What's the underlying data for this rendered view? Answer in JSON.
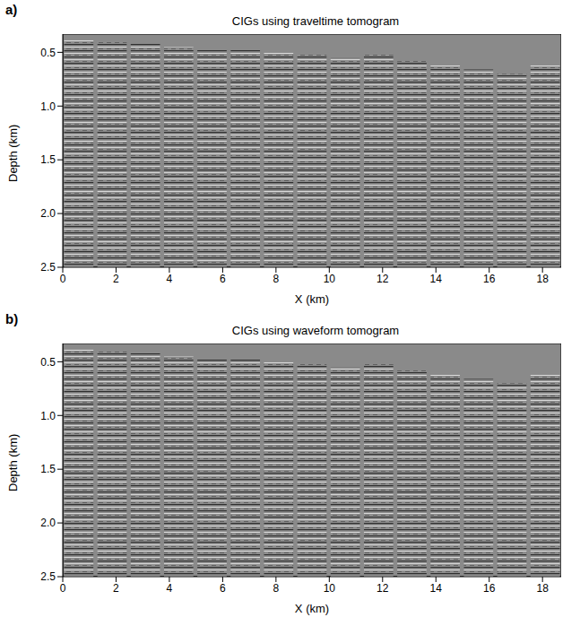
{
  "chart_data": [
    {
      "type": "image",
      "panel": "a)",
      "title": "CIGs using traveltime tomogram",
      "x_label": "X (km)",
      "y_label": "Depth (km)",
      "color": "#8a8a8a",
      "xlim": [
        0,
        18.7
      ],
      "ylim": [
        0.33,
        2.5
      ],
      "xticks": [
        0,
        2,
        4,
        6,
        8,
        10,
        12,
        14,
        16,
        18
      ],
      "yticks": [
        0.5,
        {
          "value": 1,
          "label": "1.0"
        },
        1.5,
        {
          "value": 2,
          "label": "2.0"
        },
        2.5
      ],
      "gathers": [
        {
          "x": [
            0.05,
            1.15
          ],
          "top": 0.38
        },
        {
          "x": [
            1.3,
            2.4
          ],
          "top": 0.4
        },
        {
          "x": [
            2.55,
            3.65
          ],
          "top": 0.42
        },
        {
          "x": [
            3.8,
            4.9
          ],
          "top": 0.45
        },
        {
          "x": [
            5.05,
            6.15
          ],
          "top": 0.48
        },
        {
          "x": [
            6.3,
            7.4
          ],
          "top": 0.48
        },
        {
          "x": [
            7.55,
            8.65
          ],
          "top": 0.5
        },
        {
          "x": [
            8.8,
            9.9
          ],
          "top": 0.52
        },
        {
          "x": [
            10.05,
            11.15
          ],
          "top": 0.55
        },
        {
          "x": [
            11.3,
            12.4
          ],
          "top": 0.52
        },
        {
          "x": [
            12.55,
            13.65
          ],
          "top": 0.58
        },
        {
          "x": [
            13.8,
            14.9
          ],
          "top": 0.62
        },
        {
          "x": [
            15.05,
            16.15
          ],
          "top": 0.66
        },
        {
          "x": [
            16.3,
            17.4
          ],
          "top": 0.7
        },
        {
          "x": [
            17.55,
            18.65
          ],
          "top": 0.62
        }
      ]
    },
    {
      "type": "image",
      "panel": "b)",
      "title": "CIGs using waveform tomogram",
      "x_label": "X (km)",
      "y_label": "Depth (km)",
      "color": "#8a8a8a",
      "xlim": [
        0,
        18.7
      ],
      "ylim": [
        0.33,
        2.5
      ],
      "xticks": [
        0,
        2,
        4,
        6,
        8,
        10,
        12,
        14,
        16,
        18
      ],
      "yticks": [
        0.5,
        {
          "value": 1,
          "label": "1.0"
        },
        1.5,
        {
          "value": 2,
          "label": "2.0"
        },
        2.5
      ],
      "gathers": [
        {
          "x": [
            0.05,
            1.15
          ],
          "top": 0.38
        },
        {
          "x": [
            1.3,
            2.4
          ],
          "top": 0.4
        },
        {
          "x": [
            2.55,
            3.65
          ],
          "top": 0.42
        },
        {
          "x": [
            3.8,
            4.9
          ],
          "top": 0.45
        },
        {
          "x": [
            5.05,
            6.15
          ],
          "top": 0.48
        },
        {
          "x": [
            6.3,
            7.4
          ],
          "top": 0.48
        },
        {
          "x": [
            7.55,
            8.65
          ],
          "top": 0.5
        },
        {
          "x": [
            8.8,
            9.9
          ],
          "top": 0.52
        },
        {
          "x": [
            10.05,
            11.15
          ],
          "top": 0.55
        },
        {
          "x": [
            11.3,
            12.4
          ],
          "top": 0.52
        },
        {
          "x": [
            12.55,
            13.65
          ],
          "top": 0.58
        },
        {
          "x": [
            13.8,
            14.9
          ],
          "top": 0.62
        },
        {
          "x": [
            15.05,
            16.15
          ],
          "top": 0.66
        },
        {
          "x": [
            16.3,
            17.4
          ],
          "top": 0.7
        },
        {
          "x": [
            17.55,
            18.65
          ],
          "top": 0.62
        }
      ]
    }
  ]
}
